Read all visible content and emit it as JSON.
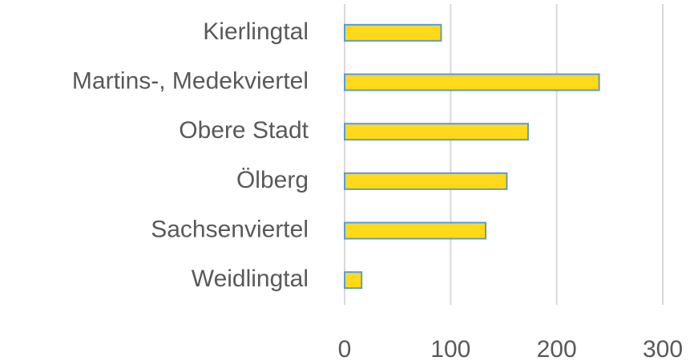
{
  "chart_data": {
    "type": "bar",
    "orientation": "horizontal",
    "categories": [
      "Kierlingtal",
      "Martins-, Medekviertel",
      "Obere Stadt",
      "Ölberg",
      "Sachsenviertel",
      "Weidlingtal"
    ],
    "values": [
      91,
      240,
      173,
      153,
      133,
      16
    ],
    "color": "#ffd91a",
    "edge_color": "#5b9bd5",
    "xlim": [
      0,
      300
    ],
    "xticks": [
      0,
      100,
      200,
      300
    ],
    "grid": true
  }
}
